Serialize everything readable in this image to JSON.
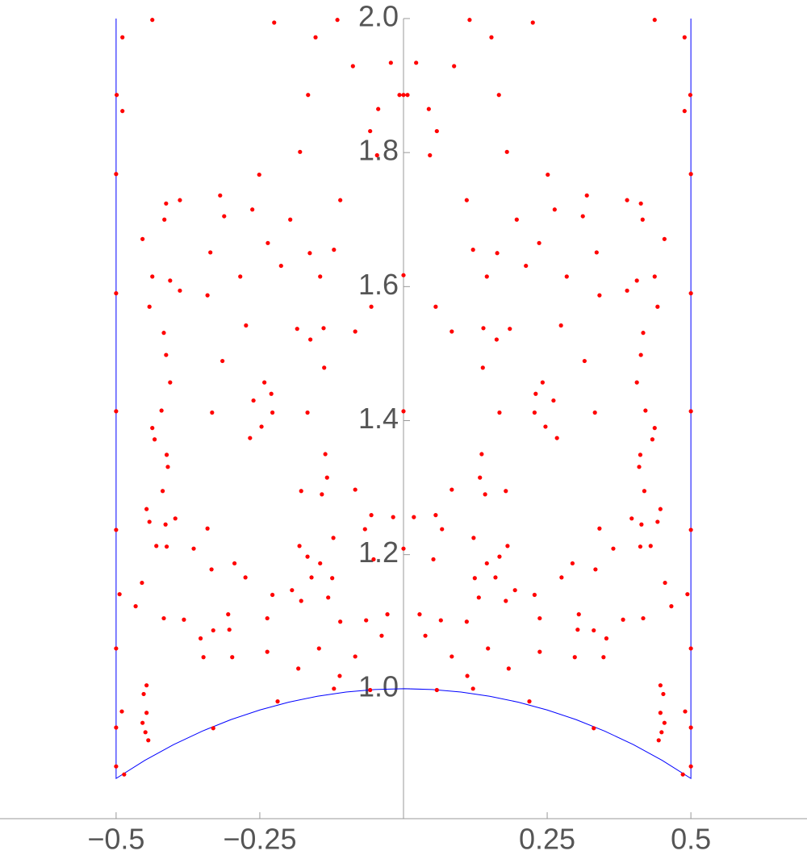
{
  "chart_data": {
    "type": "scatter",
    "xlim": [
      -0.702,
      0.702
    ],
    "ylim": [
      0.806,
      2.0
    ],
    "xticks": [
      {
        "value": -0.5,
        "label": "−0.5"
      },
      {
        "value": -0.25,
        "label": "−0.25"
      },
      0.25,
      0.5
    ],
    "yticks": [
      {
        "value": 1.0,
        "label": "1.0"
      },
      1.2,
      1.4,
      1.6,
      1.8,
      {
        "value": 2.0,
        "label": "2.0"
      }
    ],
    "series": [
      {
        "color": "#ff0000",
        "x": [
          0.022,
          0.007,
          0.044,
          0.058,
          0.046,
          0.088,
          0.115,
          0.153,
          0.225,
          0.166,
          0.18,
          0.251,
          0.319,
          0.263,
          0.197,
          0.11,
          0.121,
          0.163,
          0.213,
          0.236,
          0.336,
          0.145,
          0.284,
          0.341,
          0.312,
          0.056,
          0.084,
          0.139,
          0.185,
          0.162,
          0.138,
          0.274,
          0.315,
          0.333,
          0.242,
          0.23,
          0.261,
          0.267,
          0.247,
          0.228,
          0.167,
          0.136,
          0.178,
          0.142,
          0.084,
          0.133,
          0.018,
          0.056,
          0.067,
          0.122,
          0.181,
          0.145,
          0.167,
          0.124,
          0.052,
          0.028,
          0.065,
          0.038,
          0.084,
          0.11,
          0.131,
          0.16,
          0.194,
          0.178,
          0.228,
          0.275,
          0.237,
          0.305,
          0.303,
          0.331,
          0.353,
          0.348,
          0.298,
          0.237,
          0.183,
          0.147,
          0.111,
          0.121,
          0.058,
          0.219,
          0.331,
          0.397,
          0.341,
          0.414,
          0.412,
          0.43,
          0.447,
          0.442,
          0.419,
          0.41,
          0.433,
          0.412,
          0.437,
          0.421,
          0.406,
          0.413,
          0.417,
          0.442,
          0.437,
          0.406,
          0.389,
          0.416,
          0.389,
          0.413,
          0.454,
          0.489,
          0.499,
          0.489,
          0.5,
          0.5,
          0.5,
          0.5,
          0.5,
          0.447,
          0.452,
          0.447,
          0.454,
          0.449,
          0.444,
          0.49,
          0.5,
          0.486,
          0.455,
          0.466,
          0.494,
          0.382,
          0.417,
          0.437,
          0.365,
          0.334,
          0.294,
          0.5,
          -0.022,
          -0.007,
          -0.044,
          -0.058,
          -0.046,
          -0.088,
          -0.115,
          -0.153,
          -0.225,
          -0.166,
          -0.18,
          -0.251,
          -0.319,
          -0.263,
          -0.197,
          -0.11,
          -0.121,
          -0.163,
          -0.213,
          -0.236,
          -0.336,
          -0.145,
          -0.284,
          -0.341,
          -0.312,
          -0.056,
          -0.084,
          -0.139,
          -0.185,
          -0.162,
          -0.138,
          -0.274,
          -0.315,
          -0.333,
          -0.242,
          -0.23,
          -0.261,
          -0.267,
          -0.247,
          -0.228,
          -0.167,
          -0.136,
          -0.178,
          -0.142,
          -0.084,
          -0.133,
          -0.018,
          -0.056,
          -0.067,
          -0.122,
          -0.181,
          -0.145,
          -0.167,
          -0.124,
          -0.052,
          -0.028,
          -0.065,
          -0.038,
          -0.084,
          -0.11,
          -0.131,
          -0.16,
          -0.194,
          -0.178,
          -0.228,
          -0.275,
          -0.237,
          -0.305,
          -0.303,
          -0.331,
          -0.353,
          -0.348,
          -0.298,
          -0.237,
          -0.183,
          -0.147,
          -0.111,
          -0.121,
          -0.058,
          -0.219,
          -0.331,
          -0.397,
          -0.341,
          -0.414,
          -0.412,
          -0.43,
          -0.447,
          -0.442,
          -0.419,
          -0.41,
          -0.433,
          -0.412,
          -0.437,
          -0.421,
          -0.406,
          -0.413,
          -0.417,
          -0.442,
          -0.437,
          -0.406,
          -0.389,
          -0.416,
          -0.389,
          -0.413,
          -0.454,
          -0.489,
          -0.499,
          -0.489,
          -0.5,
          -0.5,
          -0.5,
          -0.5,
          -0.5,
          -0.447,
          -0.452,
          -0.447,
          -0.454,
          -0.449,
          -0.444,
          -0.49,
          -0.5,
          -0.486,
          -0.455,
          -0.466,
          -0.494,
          -0.382,
          -0.417,
          -0.437,
          -0.365,
          -0.334,
          -0.294,
          -0.5,
          0,
          0,
          0,
          0
        ],
        "values": [
          1.934,
          1.886,
          1.865,
          1.832,
          1.796,
          1.929,
          1.998,
          1.972,
          1.994,
          1.886,
          1.801,
          1.767,
          1.736,
          1.715,
          1.7,
          1.729,
          1.655,
          1.65,
          1.631,
          1.665,
          1.651,
          1.615,
          1.615,
          1.587,
          1.705,
          1.57,
          1.533,
          1.538,
          1.537,
          1.521,
          1.479,
          1.542,
          1.489,
          1.412,
          1.457,
          1.44,
          1.43,
          1.374,
          1.391,
          1.412,
          1.412,
          1.35,
          1.295,
          1.29,
          1.297,
          1.315,
          1.256,
          1.259,
          1.238,
          1.225,
          1.213,
          1.187,
          1.197,
          1.165,
          1.193,
          1.111,
          1.102,
          1.079,
          1.048,
          1.1,
          1.136,
          1.166,
          1.147,
          1.131,
          1.14,
          1.166,
          1.105,
          1.111,
          1.088,
          1.087,
          1.075,
          1.047,
          1.047,
          1.055,
          1.03,
          1.06,
          1.019,
          1.0,
          0.998,
          0.981,
          0.941,
          1.254,
          1.239,
          1.245,
          1.212,
          1.213,
          1.268,
          1.249,
          1.295,
          1.331,
          1.372,
          1.349,
          1.389,
          1.415,
          1.457,
          1.498,
          1.531,
          1.57,
          1.615,
          1.609,
          1.594,
          1.7,
          1.729,
          1.724,
          1.671,
          1.972,
          1.886,
          1.862,
          1.768,
          1.59,
          1.414,
          1.237,
          1.06,
          1.005,
          0.992,
          0.964,
          0.949,
          0.935,
          0.923,
          0.966,
          0.942,
          0.872,
          1.158,
          1.123,
          1.141,
          1.103,
          1.105,
          1.998,
          1.209,
          1.178,
          1.187,
          0.884,
          1.934,
          1.886,
          1.865,
          1.832,
          1.796,
          1.929,
          1.998,
          1.972,
          1.994,
          1.886,
          1.801,
          1.767,
          1.736,
          1.715,
          1.7,
          1.729,
          1.655,
          1.65,
          1.631,
          1.665,
          1.651,
          1.615,
          1.615,
          1.587,
          1.705,
          1.57,
          1.533,
          1.538,
          1.537,
          1.521,
          1.479,
          1.542,
          1.489,
          1.412,
          1.457,
          1.44,
          1.43,
          1.374,
          1.391,
          1.412,
          1.412,
          1.35,
          1.295,
          1.29,
          1.297,
          1.315,
          1.256,
          1.259,
          1.238,
          1.225,
          1.213,
          1.187,
          1.197,
          1.165,
          1.193,
          1.111,
          1.102,
          1.079,
          1.048,
          1.1,
          1.136,
          1.166,
          1.147,
          1.131,
          1.14,
          1.166,
          1.105,
          1.111,
          1.088,
          1.087,
          1.075,
          1.047,
          1.047,
          1.055,
          1.03,
          1.06,
          1.019,
          1.0,
          0.998,
          0.981,
          0.941,
          1.254,
          1.239,
          1.245,
          1.212,
          1.213,
          1.268,
          1.249,
          1.295,
          1.331,
          1.372,
          1.349,
          1.389,
          1.415,
          1.457,
          1.498,
          1.531,
          1.57,
          1.615,
          1.609,
          1.594,
          1.7,
          1.729,
          1.724,
          1.671,
          1.972,
          1.886,
          1.862,
          1.768,
          1.59,
          1.414,
          1.237,
          1.06,
          1.005,
          0.992,
          0.964,
          0.949,
          0.935,
          0.923,
          0.966,
          0.942,
          0.872,
          1.158,
          1.123,
          1.141,
          1.103,
          1.105,
          1.998,
          1.209,
          1.178,
          1.187,
          0.884,
          1.886,
          1.414,
          1.209,
          1.617
        ]
      }
    ],
    "lines": [
      {
        "color": "#0000ff",
        "x": [
          -0.5,
          -0.5,
          -0.45,
          -0.4,
          -0.35,
          -0.3,
          -0.25,
          -0.2,
          -0.15,
          -0.1,
          -0.05,
          0,
          0.05,
          0.1,
          0.15,
          0.2,
          0.25,
          0.3,
          0.35,
          0.4,
          0.45,
          0.5,
          0.5
        ],
        "y": [
          2.0,
          0.866,
          0.893,
          0.9165,
          0.9367,
          0.9539,
          0.9682,
          0.9798,
          0.9887,
          0.995,
          0.9987,
          1.0,
          0.9987,
          0.995,
          0.9887,
          0.9798,
          0.9682,
          0.9539,
          0.9367,
          0.9165,
          0.893,
          0.866,
          2.0
        ]
      }
    ]
  }
}
